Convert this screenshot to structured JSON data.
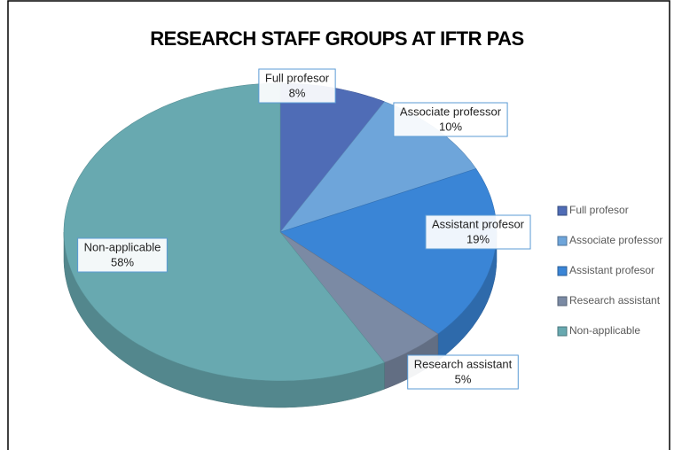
{
  "chart_data": {
    "type": "pie3d",
    "title": "RESEARCH STAFF GROUPS AT IFTR PAS",
    "categories": [
      "Full profesor",
      "Associate professor",
      "Assistant profesor",
      "Research assistant",
      "Non-applicable"
    ],
    "values": [
      8,
      10,
      19,
      5,
      58
    ],
    "value_labels": [
      "8%",
      "10%",
      "19%",
      "5%",
      "58%"
    ],
    "colors": [
      "#4f6cb6",
      "#6ea5da",
      "#3a85d6",
      "#7b8aa4",
      "#68a9b0"
    ],
    "legend": "right"
  }
}
